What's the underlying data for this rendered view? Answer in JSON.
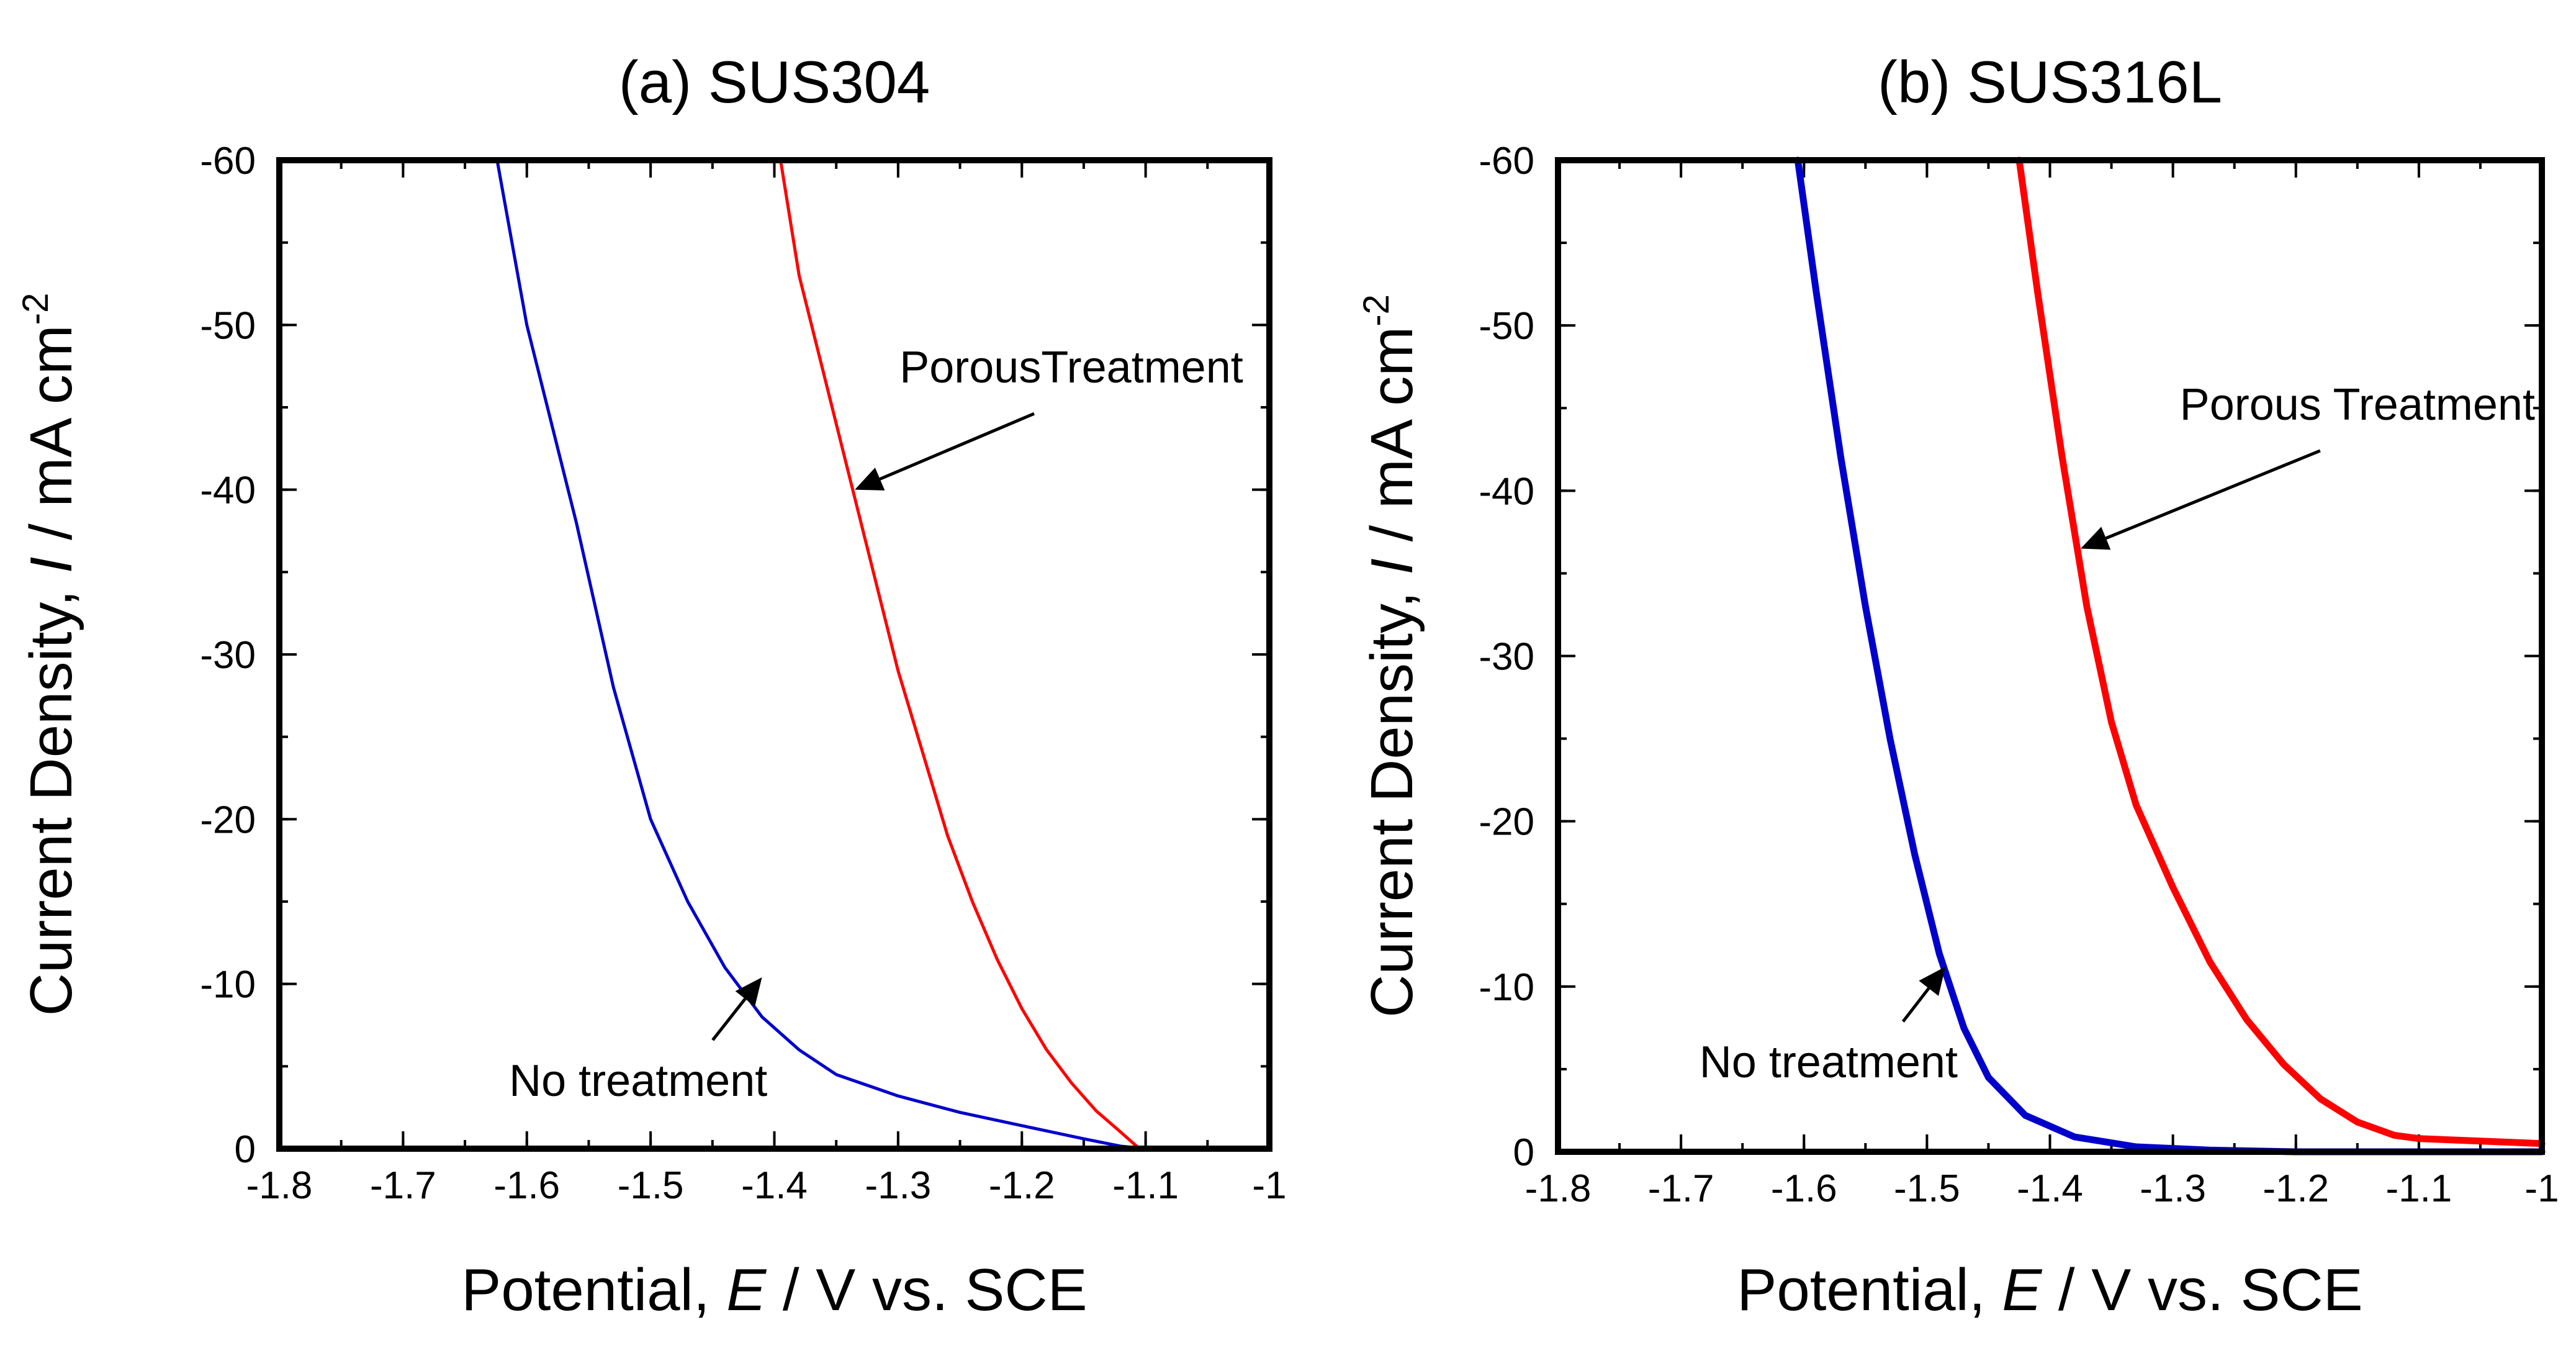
{
  "chart_data": [
    {
      "type": "line",
      "title": "(a) SUS304",
      "xlabel": "Potential, E / V vs. SCE",
      "ylabel": "Current Density, I / mA cm-2",
      "xlim": [
        -1.8,
        -1.0
      ],
      "ylim": [
        0,
        -60
      ],
      "x_ticks": [
        "-1.8",
        "-1.7",
        "-1.6",
        "-1.5",
        "-1.4",
        "-1.3",
        "-1.2",
        "-1.1",
        "-1"
      ],
      "x_tick_values": [
        -1.8,
        -1.7,
        -1.6,
        -1.5,
        -1.4,
        -1.3,
        -1.2,
        -1.1,
        -1.0
      ],
      "y_ticks": [
        "0",
        "-10",
        "-20",
        "-30",
        "-40",
        "-50",
        "-60"
      ],
      "y_tick_values": [
        0,
        -10,
        -20,
        -30,
        -40,
        -50,
        -60
      ],
      "series": [
        {
          "name": "No treatment",
          "color": "#0000cc",
          "points": [
            [
              -1.624,
              -60
            ],
            [
              -1.6,
              -50
            ],
            [
              -1.56,
              -38
            ],
            [
              -1.53,
              -28
            ],
            [
              -1.5,
              -20
            ],
            [
              -1.47,
              -15
            ],
            [
              -1.44,
              -11
            ],
            [
              -1.41,
              -8
            ],
            [
              -1.38,
              -6
            ],
            [
              -1.35,
              -4.5
            ],
            [
              -1.3,
              -3.2
            ],
            [
              -1.25,
              -2.2
            ],
            [
              -1.2,
              -1.4
            ],
            [
              -1.15,
              -0.6
            ],
            [
              -1.12,
              -0.15
            ],
            [
              -1.1,
              0
            ],
            [
              -1.0,
              0
            ]
          ]
        },
        {
          "name": "PorousTreatment",
          "color": "#ff0000",
          "points": [
            [
              -1.395,
              -60
            ],
            [
              -1.38,
              -53
            ],
            [
              -1.36,
              -47
            ],
            [
              -1.34,
              -41
            ],
            [
              -1.32,
              -35
            ],
            [
              -1.3,
              -29
            ],
            [
              -1.28,
              -24
            ],
            [
              -1.26,
              -19
            ],
            [
              -1.24,
              -15
            ],
            [
              -1.22,
              -11.5
            ],
            [
              -1.2,
              -8.5
            ],
            [
              -1.18,
              -6
            ],
            [
              -1.16,
              -4
            ],
            [
              -1.14,
              -2.3
            ],
            [
              -1.12,
              -1.0
            ],
            [
              -1.105,
              0
            ]
          ]
        }
      ],
      "annotations": [
        {
          "text": "PorousTreatment",
          "target": [
            -1.335,
            -40
          ],
          "label_at": [
            -1.16,
            -46.5
          ]
        },
        {
          "text": "No treatment",
          "target": [
            -1.41,
            -10.4
          ],
          "label_at": [
            -1.51,
            -3.2
          ]
        }
      ]
    },
    {
      "type": "line",
      "title": "(b) SUS316L",
      "xlabel": "Potential, E / V vs. SCE",
      "ylabel": "Current Density, I / mA cm-2",
      "xlim": [
        -1.8,
        -1.0
      ],
      "ylim": [
        0,
        -60
      ],
      "x_ticks": [
        "-1.8",
        "-1.7",
        "-1.6",
        "-1.5",
        "-1.4",
        "-1.3",
        "-1.2",
        "-1.1",
        "-1"
      ],
      "x_tick_values": [
        -1.8,
        -1.7,
        -1.6,
        -1.5,
        -1.4,
        -1.3,
        -1.2,
        -1.1,
        -1.0
      ],
      "y_ticks": [
        "0",
        "-10",
        "-20",
        "-30",
        "-40",
        "-50",
        "-60"
      ],
      "y_tick_values": [
        0,
        -10,
        -20,
        -30,
        -40,
        -50,
        -60
      ],
      "series": [
        {
          "name": "No treatment",
          "color": "#0000cc",
          "points": [
            [
              -1.605,
              -60
            ],
            [
              -1.59,
              -52
            ],
            [
              -1.57,
              -42
            ],
            [
              -1.55,
              -33
            ],
            [
              -1.53,
              -25
            ],
            [
              -1.51,
              -18
            ],
            [
              -1.49,
              -12
            ],
            [
              -1.47,
              -7.5
            ],
            [
              -1.45,
              -4.5
            ],
            [
              -1.42,
              -2.2
            ],
            [
              -1.38,
              -0.9
            ],
            [
              -1.33,
              -0.3
            ],
            [
              -1.27,
              -0.1
            ],
            [
              -1.2,
              0
            ],
            [
              -1.0,
              0
            ]
          ]
        },
        {
          "name": "Porous Treatment",
          "color": "#ff0000",
          "points": [
            [
              -1.425,
              -60
            ],
            [
              -1.41,
              -52
            ],
            [
              -1.39,
              -42
            ],
            [
              -1.37,
              -33
            ],
            [
              -1.35,
              -26
            ],
            [
              -1.33,
              -21
            ],
            [
              -1.3,
              -16
            ],
            [
              -1.27,
              -11.5
            ],
            [
              -1.24,
              -8
            ],
            [
              -1.21,
              -5.3
            ],
            [
              -1.18,
              -3.2
            ],
            [
              -1.15,
              -1.8
            ],
            [
              -1.12,
              -1.0
            ],
            [
              -1.1,
              -0.8
            ],
            [
              -1.0,
              -0.5
            ]
          ]
        }
      ],
      "annotations": [
        {
          "text": "Porous Treatment",
          "target": [
            -1.375,
            -36.5
          ],
          "label_at": [
            -1.15,
            -44.3
          ]
        },
        {
          "text": "No treatment",
          "target": [
            -1.485,
            -11.2
          ],
          "label_at": [
            -1.58,
            -4.5
          ]
        }
      ]
    }
  ]
}
